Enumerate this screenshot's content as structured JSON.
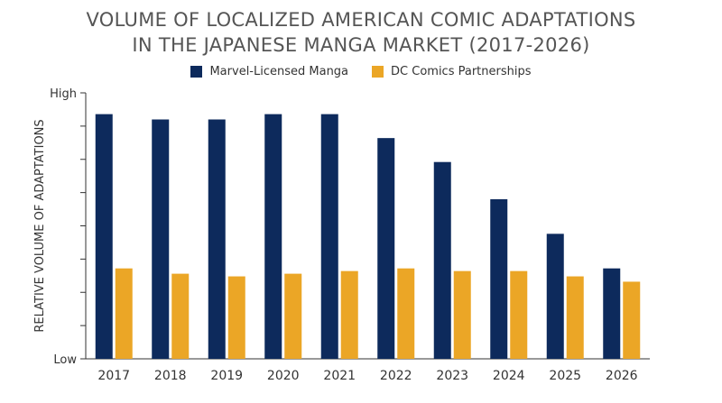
{
  "title_line1": "VOLUME OF LOCALIZED AMERICAN COMIC ADAPTATIONS",
  "title_line2": "IN THE JAPANESE MANGA MARKET (2017-2026)",
  "colors": {
    "marvel": "#0d2a5c",
    "dc": "#eba626",
    "axis": "#333333"
  },
  "chart_data": {
    "type": "bar",
    "title": "VOLUME OF LOCALIZED AMERICAN COMIC ADAPTATIONS IN THE JAPANESE MANGA MARKET (2017-2026)",
    "categories": [
      "2017",
      "2018",
      "2019",
      "2020",
      "2021",
      "2022",
      "2023",
      "2024",
      "2025",
      "2026"
    ],
    "series": [
      {
        "name": "Marvel-Licensed Manga",
        "values": [
          9.2,
          9.0,
          9.0,
          9.2,
          9.2,
          8.3,
          7.4,
          6.0,
          4.7,
          3.4
        ]
      },
      {
        "name": "DC Comics Partnerships",
        "values": [
          3.4,
          3.2,
          3.1,
          3.2,
          3.3,
          3.4,
          3.3,
          3.3,
          3.1,
          2.9
        ]
      }
    ],
    "xlabel": "",
    "ylabel": "RELATIVE VOLUME OF ADAPTATIONS",
    "y_tick_labels": {
      "top": "High",
      "bottom": "Low"
    },
    "ylim": [
      0,
      10
    ],
    "y_ticks": 8,
    "grid": false,
    "legend": "top"
  }
}
